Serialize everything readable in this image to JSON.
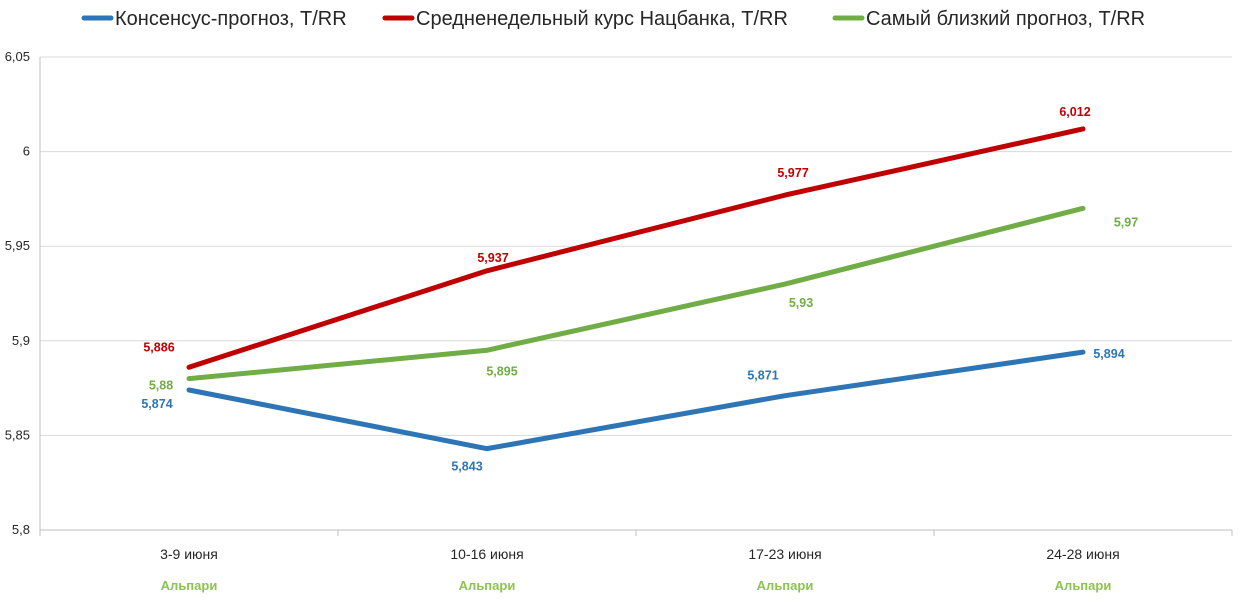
{
  "chart_data": {
    "type": "line",
    "categories": [
      "3-9 июня",
      "10-16 июня",
      "17-23 июня",
      "24-28 июня"
    ],
    "category_sublabels": [
      "Альпари",
      "Альпари",
      "Альпари",
      "Альпари"
    ],
    "ylim": [
      5.8,
      6.05
    ],
    "yticks": [
      5.8,
      5.85,
      5.9,
      5.95,
      6,
      6.05
    ],
    "ytick_labels": [
      "5,8",
      "5,85",
      "5,9",
      "5,95",
      "6",
      "6,05"
    ],
    "grid": true,
    "legend_position": "top",
    "series": [
      {
        "name": "Консенсус-прогноз, Т/RR",
        "color": "#2e75b6",
        "values": [
          5.874,
          5.843,
          5.871,
          5.894
        ],
        "labels": [
          "5,874",
          "5,843",
          "5,871",
          "5,894"
        ]
      },
      {
        "name": "Средненедельный курс Нацбанка, Т/RR",
        "color": "#c00000",
        "values": [
          5.886,
          5.937,
          5.977,
          6.012
        ],
        "labels": [
          "5,886",
          "5,937",
          "5,977",
          "6,012"
        ]
      },
      {
        "name": "Самый близкий прогноз, Т/RR",
        "color": "#70ad47",
        "values": [
          5.88,
          5.895,
          5.93,
          5.97
        ],
        "labels": [
          "5,88",
          "5,895",
          "5,93",
          "5,97"
        ]
      }
    ]
  }
}
